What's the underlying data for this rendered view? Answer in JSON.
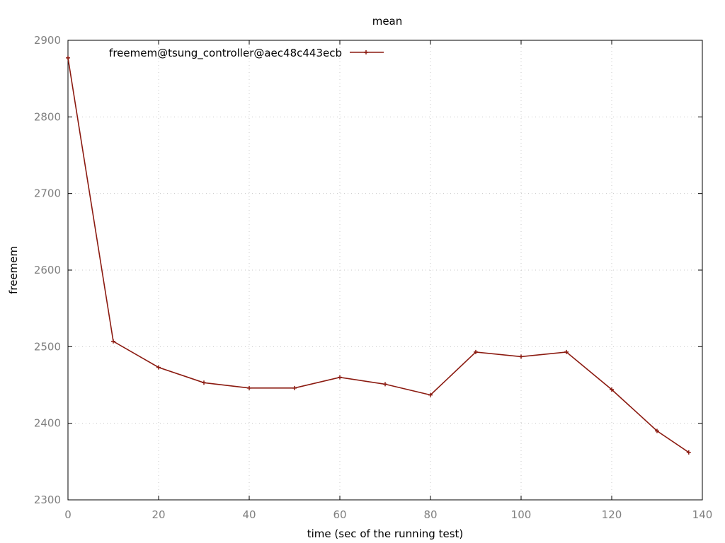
{
  "chart_data": {
    "type": "line",
    "title": "mean",
    "xlabel": "time (sec of the running test)",
    "ylabel": "freemem",
    "xlim": [
      0,
      140
    ],
    "ylim": [
      2300,
      2900
    ],
    "xticks": [
      0,
      20,
      40,
      60,
      80,
      100,
      120,
      140
    ],
    "yticks": [
      2300,
      2400,
      2500,
      2600,
      2700,
      2800,
      2900
    ],
    "grid": true,
    "legend_position": "top-left",
    "series": [
      {
        "name": "freemem@tsung_controller@aec48c443ecb",
        "color": "#8b1a10",
        "x": [
          0,
          10,
          20,
          30,
          40,
          50,
          60,
          70,
          80,
          90,
          100,
          110,
          120,
          130,
          137
        ],
        "y": [
          2877,
          2507,
          2473,
          2453,
          2446,
          2446,
          2460,
          2451,
          2437,
          2493,
          2487,
          2493,
          2444,
          2390,
          2362
        ]
      }
    ]
  }
}
